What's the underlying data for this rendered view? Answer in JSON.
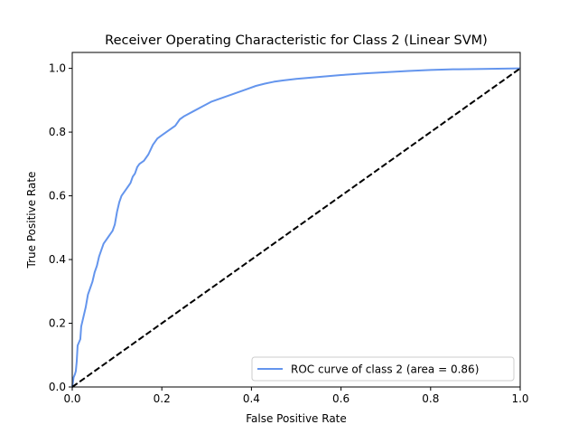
{
  "chart_data": {
    "type": "line",
    "title": "Receiver Operating Characteristic for Class 2 (Linear SVM)",
    "xlabel": "False Positive Rate",
    "ylabel": "True Positive Rate",
    "xlim": [
      0.0,
      1.0
    ],
    "ylim": [
      0.0,
      1.05
    ],
    "xticks": [
      0.0,
      0.2,
      0.4,
      0.6,
      0.8,
      1.0
    ],
    "xtick_labels": [
      "0.0",
      "0.2",
      "0.4",
      "0.6",
      "0.8",
      "1.0"
    ],
    "yticks": [
      0.0,
      0.2,
      0.4,
      0.6,
      0.8,
      1.0
    ],
    "ytick_labels": [
      "0.0",
      "0.2",
      "0.4",
      "0.6",
      "0.8",
      "1.0"
    ],
    "grid": false,
    "legend_position": "lower-right",
    "series": [
      {
        "name": "ROC curve of class 2 (area = 0.86)",
        "color": "#6495ed",
        "style": "solid",
        "x": [
          0.0,
          0.003,
          0.006,
          0.008,
          0.01,
          0.012,
          0.015,
          0.018,
          0.02,
          0.025,
          0.03,
          0.035,
          0.04,
          0.045,
          0.05,
          0.055,
          0.06,
          0.065,
          0.07,
          0.075,
          0.08,
          0.085,
          0.09,
          0.095,
          0.1,
          0.105,
          0.11,
          0.115,
          0.12,
          0.125,
          0.13,
          0.135,
          0.14,
          0.145,
          0.15,
          0.16,
          0.17,
          0.18,
          0.19,
          0.2,
          0.21,
          0.22,
          0.23,
          0.24,
          0.25,
          0.27,
          0.29,
          0.31,
          0.33,
          0.35,
          0.37,
          0.39,
          0.41,
          0.43,
          0.45,
          0.47,
          0.5,
          0.55,
          0.6,
          0.65,
          0.7,
          0.75,
          0.8,
          0.85,
          0.9,
          0.95,
          1.0
        ],
        "y": [
          0.0,
          0.03,
          0.04,
          0.05,
          0.08,
          0.13,
          0.14,
          0.15,
          0.19,
          0.22,
          0.25,
          0.29,
          0.31,
          0.33,
          0.36,
          0.38,
          0.41,
          0.43,
          0.45,
          0.46,
          0.47,
          0.48,
          0.49,
          0.51,
          0.55,
          0.58,
          0.6,
          0.61,
          0.62,
          0.63,
          0.64,
          0.66,
          0.67,
          0.69,
          0.7,
          0.71,
          0.73,
          0.76,
          0.78,
          0.79,
          0.8,
          0.81,
          0.82,
          0.84,
          0.85,
          0.865,
          0.88,
          0.895,
          0.905,
          0.915,
          0.925,
          0.935,
          0.945,
          0.952,
          0.958,
          0.962,
          0.967,
          0.973,
          0.979,
          0.984,
          0.988,
          0.992,
          0.995,
          0.997,
          0.998,
          0.999,
          1.0
        ]
      },
      {
        "name": "",
        "color": "#000000",
        "style": "dashed",
        "x": [
          0.0,
          1.0
        ],
        "y": [
          0.0,
          1.0
        ]
      }
    ]
  }
}
